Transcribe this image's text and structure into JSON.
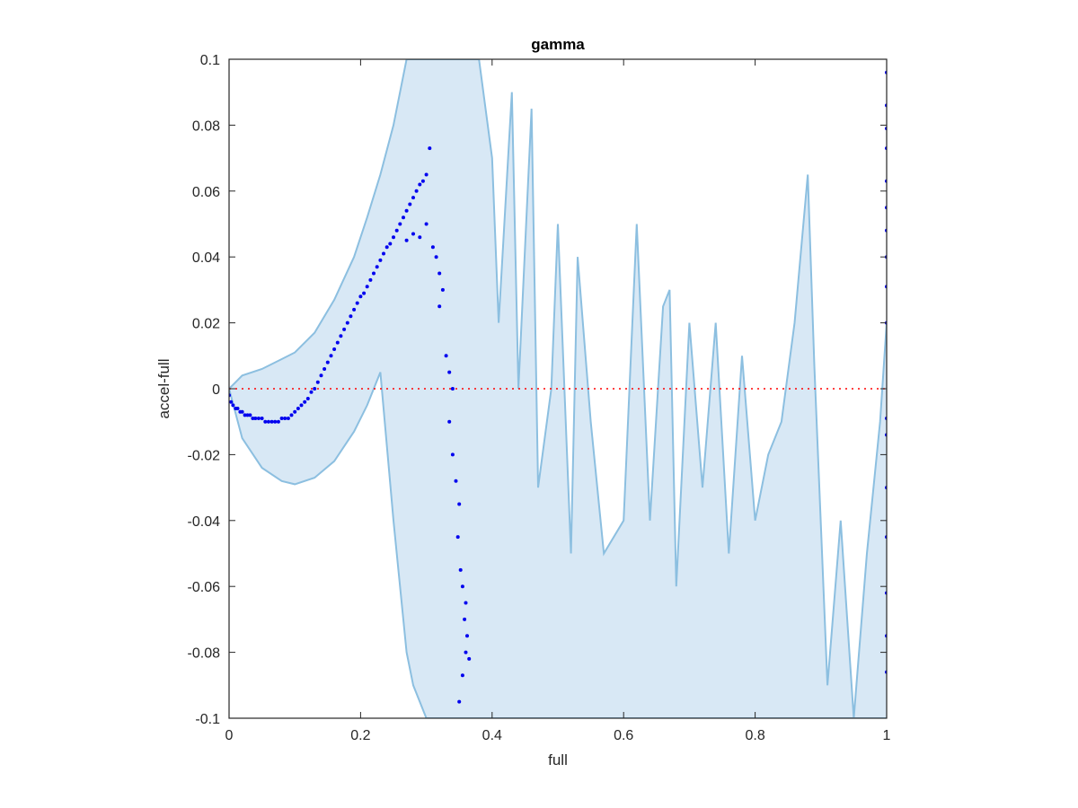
{
  "chart_data": {
    "type": "scatter",
    "title": "gamma",
    "xlabel": "full",
    "ylabel": "accel-full",
    "xlim": [
      0,
      1
    ],
    "ylim": [
      -0.1,
      0.1
    ],
    "xticks": [
      0,
      0.2,
      0.4,
      0.6,
      0.8,
      1
    ],
    "xtick_labels": [
      "0",
      "0.2",
      "0.4",
      "0.6",
      "0.8",
      "1"
    ],
    "yticks": [
      -0.1,
      -0.08,
      -0.06,
      -0.04,
      -0.02,
      0,
      0.02,
      0.04,
      0.06,
      0.08,
      0.1
    ],
    "ytick_labels": [
      "-0.1",
      "-0.08",
      "-0.06",
      "-0.04",
      "-0.02",
      "0",
      "0.02",
      "0.04",
      "0.06",
      "0.08",
      "0.1"
    ],
    "grid": false,
    "reference_line": {
      "y": 0,
      "style": "dotted",
      "color": "#ff0000"
    },
    "band": {
      "color": "#8cbfe0",
      "fill": "#d8e8f5",
      "upper": [
        [
          0,
          0.0
        ],
        [
          0.02,
          0.004
        ],
        [
          0.05,
          0.006
        ],
        [
          0.08,
          0.009
        ],
        [
          0.1,
          0.011
        ],
        [
          0.13,
          0.017
        ],
        [
          0.16,
          0.027
        ],
        [
          0.19,
          0.04
        ],
        [
          0.21,
          0.052
        ],
        [
          0.23,
          0.065
        ],
        [
          0.25,
          0.08
        ],
        [
          0.26,
          0.09
        ],
        [
          0.27,
          0.1
        ],
        [
          0.3,
          0.1
        ],
        [
          0.35,
          0.1
        ],
        [
          0.38,
          0.1
        ],
        [
          0.4,
          0.07
        ],
        [
          0.41,
          0.02
        ],
        [
          0.43,
          0.09
        ],
        [
          0.44,
          0.0
        ],
        [
          0.46,
          0.085
        ],
        [
          0.47,
          -0.03
        ],
        [
          0.49,
          0.0
        ],
        [
          0.5,
          0.05
        ],
        [
          0.52,
          -0.05
        ],
        [
          0.53,
          0.04
        ],
        [
          0.55,
          -0.01
        ],
        [
          0.57,
          -0.05
        ],
        [
          0.6,
          -0.04
        ],
        [
          0.62,
          0.05
        ],
        [
          0.64,
          -0.04
        ],
        [
          0.66,
          0.025
        ],
        [
          0.67,
          0.03
        ],
        [
          0.68,
          -0.06
        ],
        [
          0.7,
          0.02
        ],
        [
          0.72,
          -0.03
        ],
        [
          0.74,
          0.02
        ],
        [
          0.76,
          -0.05
        ],
        [
          0.78,
          0.01
        ],
        [
          0.8,
          -0.04
        ],
        [
          0.82,
          -0.02
        ],
        [
          0.84,
          -0.01
        ],
        [
          0.86,
          0.02
        ],
        [
          0.88,
          0.065
        ],
        [
          0.89,
          0.007
        ],
        [
          0.91,
          -0.09
        ],
        [
          0.93,
          -0.04
        ],
        [
          0.95,
          -0.1
        ],
        [
          0.97,
          -0.05
        ],
        [
          0.99,
          -0.01
        ],
        [
          1.0,
          0.02
        ]
      ],
      "lower": [
        [
          0,
          0.0
        ],
        [
          0.02,
          -0.015
        ],
        [
          0.05,
          -0.024
        ],
        [
          0.08,
          -0.028
        ],
        [
          0.1,
          -0.029
        ],
        [
          0.13,
          -0.027
        ],
        [
          0.16,
          -0.022
        ],
        [
          0.19,
          -0.013
        ],
        [
          0.21,
          -0.005
        ],
        [
          0.23,
          0.005
        ],
        [
          0.25,
          -0.04
        ],
        [
          0.26,
          -0.06
        ],
        [
          0.27,
          -0.08
        ],
        [
          0.28,
          -0.09
        ],
        [
          0.3,
          -0.1
        ],
        [
          0.35,
          -0.1
        ],
        [
          0.4,
          -0.1
        ],
        [
          0.45,
          -0.1
        ],
        [
          0.5,
          -0.1
        ],
        [
          0.55,
          -0.1
        ],
        [
          0.6,
          -0.1
        ],
        [
          0.65,
          -0.1
        ],
        [
          0.7,
          -0.1
        ],
        [
          0.75,
          -0.1
        ],
        [
          0.8,
          -0.1
        ],
        [
          0.85,
          -0.1
        ],
        [
          0.9,
          -0.1
        ],
        [
          0.95,
          -0.1
        ],
        [
          1.0,
          -0.1
        ]
      ]
    },
    "series": [
      {
        "marker": "dot",
        "color": "#0000ee",
        "points": [
          [
            0.0,
            -0.002
          ],
          [
            0.003,
            -0.004
          ],
          [
            0.006,
            -0.005
          ],
          [
            0.01,
            -0.006
          ],
          [
            0.013,
            -0.006
          ],
          [
            0.017,
            -0.007
          ],
          [
            0.02,
            -0.007
          ],
          [
            0.024,
            -0.008
          ],
          [
            0.028,
            -0.008
          ],
          [
            0.032,
            -0.008
          ],
          [
            0.036,
            -0.009
          ],
          [
            0.04,
            -0.009
          ],
          [
            0.045,
            -0.009
          ],
          [
            0.05,
            -0.009
          ],
          [
            0.055,
            -0.01
          ],
          [
            0.06,
            -0.01
          ],
          [
            0.065,
            -0.01
          ],
          [
            0.07,
            -0.01
          ],
          [
            0.075,
            -0.01
          ],
          [
            0.08,
            -0.009
          ],
          [
            0.085,
            -0.009
          ],
          [
            0.09,
            -0.009
          ],
          [
            0.095,
            -0.008
          ],
          [
            0.1,
            -0.007
          ],
          [
            0.105,
            -0.006
          ],
          [
            0.11,
            -0.005
          ],
          [
            0.115,
            -0.004
          ],
          [
            0.12,
            -0.003
          ],
          [
            0.125,
            -0.001
          ],
          [
            0.13,
            0.0
          ],
          [
            0.135,
            0.002
          ],
          [
            0.14,
            0.004
          ],
          [
            0.145,
            0.006
          ],
          [
            0.15,
            0.008
          ],
          [
            0.155,
            0.01
          ],
          [
            0.16,
            0.012
          ],
          [
            0.165,
            0.014
          ],
          [
            0.17,
            0.016
          ],
          [
            0.175,
            0.018
          ],
          [
            0.18,
            0.02
          ],
          [
            0.185,
            0.022
          ],
          [
            0.19,
            0.024
          ],
          [
            0.195,
            0.026
          ],
          [
            0.2,
            0.028
          ],
          [
            0.205,
            0.029
          ],
          [
            0.21,
            0.031
          ],
          [
            0.215,
            0.033
          ],
          [
            0.22,
            0.035
          ],
          [
            0.225,
            0.037
          ],
          [
            0.23,
            0.039
          ],
          [
            0.235,
            0.041
          ],
          [
            0.24,
            0.043
          ],
          [
            0.245,
            0.044
          ],
          [
            0.25,
            0.046
          ],
          [
            0.255,
            0.048
          ],
          [
            0.26,
            0.05
          ],
          [
            0.265,
            0.052
          ],
          [
            0.27,
            0.054
          ],
          [
            0.275,
            0.056
          ],
          [
            0.28,
            0.058
          ],
          [
            0.285,
            0.06
          ],
          [
            0.29,
            0.062
          ],
          [
            0.295,
            0.063
          ],
          [
            0.3,
            0.065
          ],
          [
            0.305,
            0.073
          ],
          [
            0.27,
            0.045
          ],
          [
            0.28,
            0.047
          ],
          [
            0.29,
            0.046
          ],
          [
            0.3,
            0.05
          ],
          [
            0.31,
            0.043
          ],
          [
            0.315,
            0.04
          ],
          [
            0.32,
            0.035
          ],
          [
            0.325,
            0.03
          ],
          [
            0.32,
            0.025
          ],
          [
            0.33,
            0.01
          ],
          [
            0.335,
            0.005
          ],
          [
            0.34,
            0.0
          ],
          [
            0.335,
            -0.01
          ],
          [
            0.34,
            -0.02
          ],
          [
            0.345,
            -0.028
          ],
          [
            0.35,
            -0.035
          ],
          [
            0.348,
            -0.045
          ],
          [
            0.352,
            -0.055
          ],
          [
            0.355,
            -0.06
          ],
          [
            0.36,
            -0.065
          ],
          [
            0.358,
            -0.07
          ],
          [
            0.362,
            -0.075
          ],
          [
            0.36,
            -0.08
          ],
          [
            0.365,
            -0.082
          ],
          [
            0.355,
            -0.087
          ],
          [
            0.35,
            -0.095
          ],
          [
            1.0,
            0.096
          ],
          [
            1.0,
            0.086
          ],
          [
            1.0,
            0.079
          ],
          [
            1.0,
            0.073
          ],
          [
            1.0,
            0.063
          ],
          [
            1.0,
            0.055
          ],
          [
            1.0,
            0.048
          ],
          [
            1.0,
            0.04
          ],
          [
            1.0,
            0.031
          ],
          [
            1.0,
            0.02
          ],
          [
            1.0,
            -0.009
          ],
          [
            1.0,
            -0.014
          ],
          [
            1.0,
            -0.03
          ],
          [
            1.0,
            -0.045
          ],
          [
            1.0,
            -0.062
          ],
          [
            1.0,
            -0.075
          ],
          [
            1.0,
            -0.086
          ]
        ]
      }
    ]
  }
}
